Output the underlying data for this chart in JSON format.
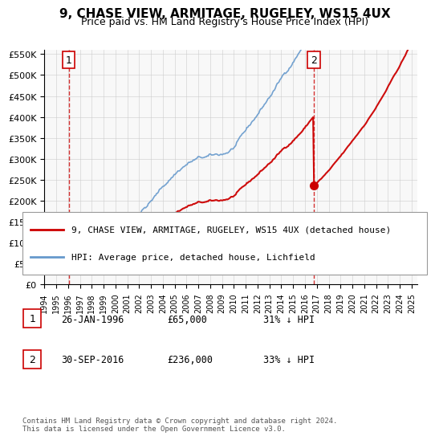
{
  "title": "9, CHASE VIEW, ARMITAGE, RUGELEY, WS15 4UX",
  "subtitle": "Price paid vs. HM Land Registry's House Price Index (HPI)",
  "legend_entry1": "9, CHASE VIEW, ARMITAGE, RUGELEY, WS15 4UX (detached house)",
  "legend_entry2": "HPI: Average price, detached house, Lichfield",
  "annotation1_label": "1",
  "annotation1_date": "26-JAN-1996",
  "annotation1_price": "£65,000",
  "annotation1_hpi": "31% ↓ HPI",
  "annotation2_label": "2",
  "annotation2_date": "30-SEP-2016",
  "annotation2_price": "£236,000",
  "annotation2_hpi": "33% ↓ HPI",
  "footnote": "Contains HM Land Registry data © Crown copyright and database right 2024.\nThis data is licensed under the Open Government Licence v3.0.",
  "sale1_x": 1996.07,
  "sale1_y": 65000,
  "sale2_x": 2016.75,
  "sale2_y": 236000,
  "vline1_x": 1996.07,
  "vline2_x": 2016.75,
  "xlim": [
    1994,
    2025.5
  ],
  "ylim": [
    0,
    560000
  ],
  "yticks": [
    0,
    50000,
    100000,
    150000,
    200000,
    250000,
    300000,
    350000,
    400000,
    450000,
    500000,
    550000
  ],
  "xticks": [
    1994,
    1995,
    1996,
    1997,
    1998,
    1999,
    2000,
    2001,
    2002,
    2003,
    2004,
    2005,
    2006,
    2007,
    2008,
    2009,
    2010,
    2011,
    2012,
    2013,
    2014,
    2015,
    2016,
    2017,
    2018,
    2019,
    2020,
    2021,
    2022,
    2023,
    2024,
    2025
  ],
  "house_color": "#cc0000",
  "hpi_color": "#6699cc",
  "vline_color": "#cc0000",
  "grid_color": "#cccccc",
  "bg_color": "#f8f8f8"
}
